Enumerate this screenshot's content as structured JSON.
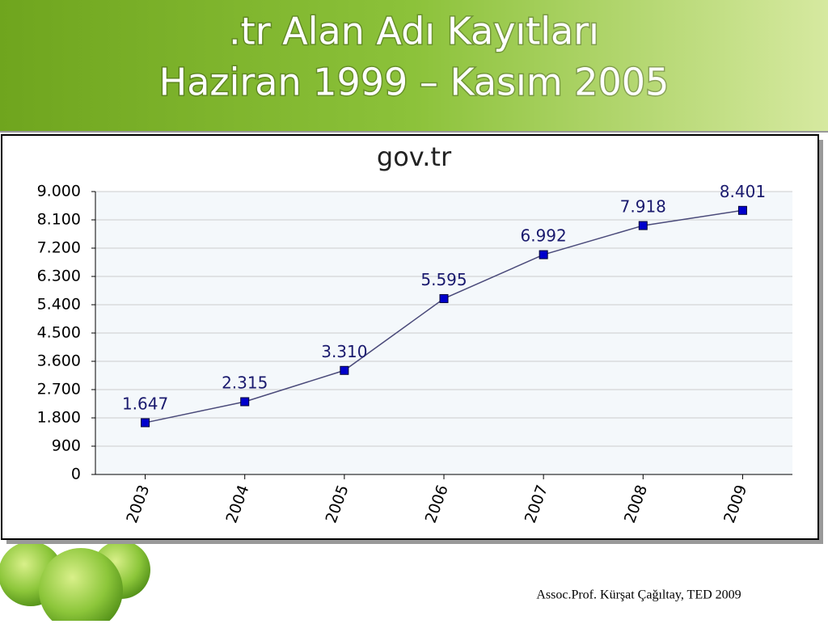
{
  "slide": {
    "title_lines": [
      ".tr Alan Adı Kayıtları",
      "Haziran 1999 – Kasım 2005"
    ],
    "footer": "Assoc.Prof. Kürşat Çağıltay, TED 2009"
  },
  "chart_data": {
    "type": "line",
    "title": "gov.tr",
    "categories": [
      "2003",
      "2004",
      "2005",
      "2006",
      "2007",
      "2008",
      "2009"
    ],
    "values": [
      1647,
      2315,
      3310,
      5595,
      6992,
      7918,
      8401
    ],
    "value_labels": [
      "1.647",
      "2.315",
      "3.310",
      "5.595",
      "6.992",
      "7.918",
      "8.401"
    ],
    "color": "#0000cc",
    "ylim": [
      0,
      9000
    ],
    "yticks": [
      0,
      900,
      {
        "value": 1800,
        "label": "1.800"
      },
      {
        "value": 2700,
        "label": "2.700"
      },
      {
        "value": 3600,
        "label": "3.600"
      },
      {
        "value": 4500,
        "label": "4.500"
      },
      {
        "value": 5400,
        "label": "5.400"
      },
      {
        "value": 6300,
        "label": "6.300"
      },
      {
        "value": 7200,
        "label": "7.200"
      },
      {
        "value": 8100,
        "label": "8.100"
      },
      {
        "value": 9000,
        "label": "9.000"
      }
    ],
    "grid": true
  }
}
